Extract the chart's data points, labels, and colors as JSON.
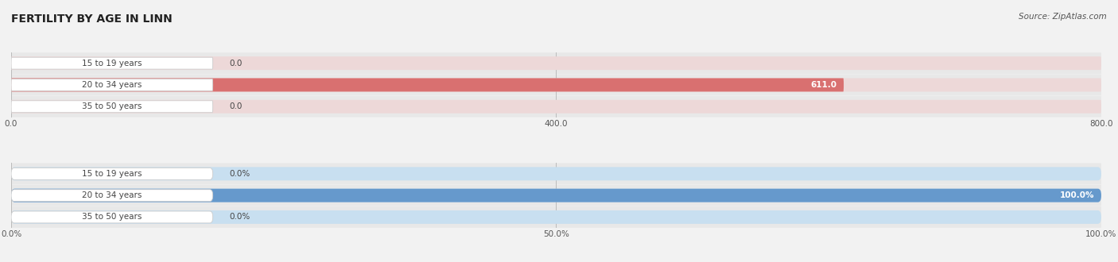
{
  "title": "FERTILITY BY AGE IN LINN",
  "source": "Source: ZipAtlas.com",
  "top_chart": {
    "categories": [
      "15 to 19 years",
      "20 to 34 years",
      "35 to 50 years"
    ],
    "values": [
      0.0,
      611.0,
      0.0
    ],
    "bar_color": "#d97070",
    "bar_bg_color": "#edd8d8",
    "xlim": [
      0,
      800
    ],
    "xticks": [
      0.0,
      400.0,
      800.0
    ],
    "xtick_labels": [
      "0.0",
      "400.0",
      "800.0"
    ],
    "value_labels": [
      "0.0",
      "611.0",
      "0.0"
    ]
  },
  "bottom_chart": {
    "categories": [
      "15 to 19 years",
      "20 to 34 years",
      "35 to 50 years"
    ],
    "values": [
      0.0,
      100.0,
      0.0
    ],
    "bar_color": "#6699cc",
    "bar_bg_color": "#c8dff0",
    "xlim": [
      0,
      100
    ],
    "xticks": [
      0.0,
      50.0,
      100.0
    ],
    "xtick_labels": [
      "0.0%",
      "50.0%",
      "100.0%"
    ],
    "value_labels": [
      "0.0%",
      "100.0%",
      "0.0%"
    ]
  },
  "label_box_color": "#ffffff",
  "label_text_color": "#444444",
  "bg_color": "#f2f2f2",
  "row_bg_color": "#e8e8e8",
  "bar_height": 0.62,
  "title_fontsize": 10,
  "label_fontsize": 7.5,
  "value_fontsize": 7.5,
  "tick_fontsize": 7.5
}
